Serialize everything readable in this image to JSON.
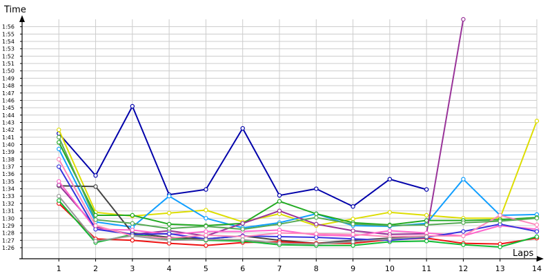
{
  "chart_data": {
    "type": "line",
    "ylabel": "Time",
    "xlabel": "Laps",
    "x": [
      1,
      2,
      3,
      4,
      5,
      6,
      7,
      8,
      9,
      10,
      11,
      12,
      13,
      14
    ],
    "xlim": [
      0,
      14
    ],
    "ylim_seconds": [
      84.5,
      117.0
    ],
    "y_ticks": [
      "1:26",
      "1:27",
      "1:28",
      "1:29",
      "1:30",
      "1:31",
      "1:32",
      "1:33",
      "1:34",
      "1:35",
      "1:36",
      "1:37",
      "1:38",
      "1:39",
      "1:40",
      "1:41",
      "1:42",
      "1:43",
      "1:44",
      "1:45",
      "1:46",
      "1:47",
      "1:48",
      "1:49",
      "1:50",
      "1:51",
      "1:52",
      "1:53",
      "1:54",
      "1:55",
      "1:56"
    ],
    "grid": true,
    "series": [
      {
        "color": "#0000aa",
        "values": [
          "1:41.5",
          "1:35.8",
          "1:45.2",
          "1:33.2",
          "1:33.9",
          "1:42.2",
          "1:33.1",
          "1:34.0",
          "1:31.6",
          "1:35.3",
          "1:33.9",
          null,
          null,
          null
        ]
      },
      {
        "color": "#dddd00",
        "values": [
          "1:42.0",
          "1:30.8",
          "1:30.3",
          "1:30.7",
          "1:31.1",
          "1:29.5",
          "1:30.6",
          "1:29.0",
          "1:29.9",
          "1:30.8",
          "1:30.4",
          "1:30.0",
          "1:30.0",
          "1:43.2"
        ]
      },
      {
        "color": "#119fff",
        "values": [
          "1:39.4",
          "1:29.5",
          "1:28.8",
          "1:33.0",
          "1:30.0",
          "1:28.7",
          "1:29.4",
          "1:30.6",
          "1:29.0",
          "1:28.9",
          "1:29.3",
          "1:35.3",
          "1:30.4",
          "1:30.5"
        ]
      },
      {
        "color": "#22aa22",
        "values": [
          "1:40.3",
          "1:30.4",
          "1:30.4",
          "1:29.2",
          "1:29.0",
          "1:29.3",
          "1:32.3",
          "1:30.6",
          "1:29.4",
          "1:29.1",
          "1:29.7",
          "1:29.7",
          "1:29.8",
          "1:30.1"
        ]
      },
      {
        "color": "#444444",
        "values": [
          "1:34.4",
          "1:34.3",
          "1:28.0",
          "1:27.4",
          "1:27.2",
          "1:27.6",
          "1:27.0",
          "1:26.6",
          "1:27.0",
          "1:27.3",
          "1:27.5",
          null,
          null,
          null
        ]
      },
      {
        "color": "#ee1111",
        "values": [
          "1:32.0",
          "1:27.2",
          "1:27.0",
          "1:26.6",
          "1:26.3",
          "1:26.7",
          "1:26.8",
          "1:26.6",
          "1:26.6",
          "1:27.1",
          "1:27.3",
          "1:26.6",
          "1:26.5",
          "1:27.3"
        ]
      },
      {
        "color": "#11bb33",
        "values": [
          "1:32.4",
          "1:26.7",
          "1:27.8",
          "1:27.2",
          "1:27.0",
          "1:26.9",
          "1:26.4",
          "1:26.3",
          "1:26.3",
          "1:26.8",
          "1:26.9",
          "1:26.4",
          "1:26.1",
          "1:27.5"
        ]
      },
      {
        "color": "#993399",
        "values": [
          "1:34.5",
          "1:28.8",
          "1:27.8",
          "1:28.3",
          "1:27.6",
          "1:29.3",
          "1:31.0",
          "1:29.2",
          "1:28.3",
          "1:27.8",
          "1:27.9",
          "1:57.0",
          null,
          null
        ]
      },
      {
        "color": "#ff66cc",
        "values": [
          "1:35.0",
          "1:28.5",
          "1:28.4",
          "1:27.8",
          "1:28.2",
          "1:28.2",
          "1:28.4",
          "1:27.7",
          "1:27.6",
          "1:28.3",
          "1:28.0",
          "1:27.6",
          "1:29.0",
          "1:28.5"
        ]
      },
      {
        "color": "#3333dd",
        "values": [
          "1:37.0",
          "1:28.5",
          "1:27.8",
          "1:27.9",
          "1:27.2",
          "1:27.6",
          "1:27.5",
          "1:27.4",
          "1:27.2",
          "1:27.0",
          "1:27.4",
          "1:28.2",
          "1:29.2",
          "1:28.2"
        ]
      },
      {
        "color": "#ff88bb",
        "values": [
          "1:38.0",
          "1:29.0",
          "1:27.6",
          "1:27.3",
          "1:27.7",
          "1:27.5",
          "1:28.0",
          "1:27.9",
          "1:27.8",
          "1:27.5",
          "1:27.6",
          "1:27.6",
          "1:30.4",
          "1:29.1"
        ]
      },
      {
        "color": "#999999",
        "values": [
          "1:33.0",
          "1:26.9",
          "1:27.6",
          "1:27.0",
          "1:27.1",
          "1:27.1",
          "1:26.6",
          "1:26.5",
          "1:26.8",
          "1:27.2",
          "1:27.5",
          null,
          null,
          null
        ]
      },
      {
        "color": "#55aa55",
        "values": [
          "1:41.0",
          "1:29.8",
          "1:29.3",
          "1:28.6",
          "1:28.9",
          "1:28.5",
          "1:29.2",
          "1:30.1",
          "1:29.2",
          "1:29.0",
          "1:29.1",
          "1:29.4",
          "1:29.6",
          "1:30.0"
        ]
      }
    ]
  }
}
